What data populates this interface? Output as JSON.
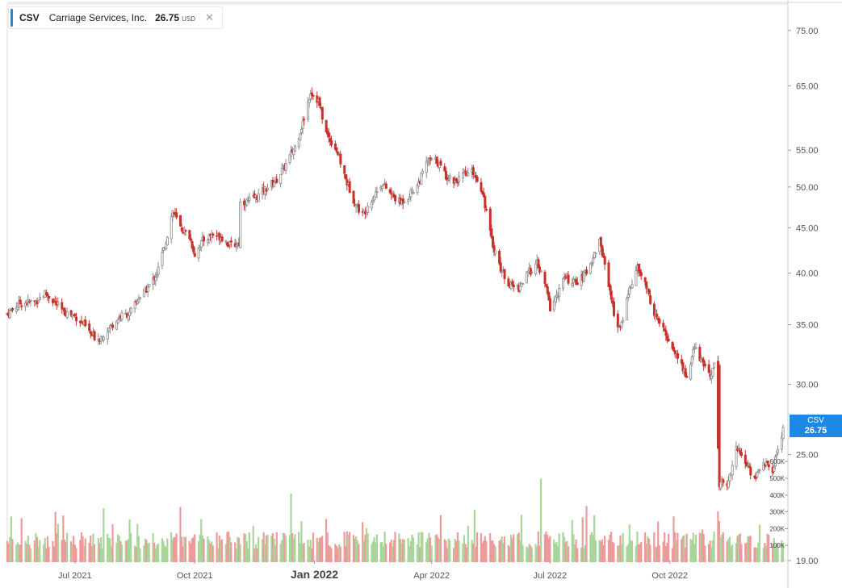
{
  "legend": {
    "symbol": "CSV",
    "name": "Carriage Services, Inc.",
    "price": "26.75",
    "unit": "USD",
    "close_glyph": "✕",
    "close_icon": "close-icon"
  },
  "price_tag": {
    "symbol": "CSV",
    "value": "26.75"
  },
  "colors": {
    "up": "#8a8a8a",
    "down": "#c9312a",
    "vol_up": "#a9d59b",
    "vol_down": "#ef9a9a",
    "tag": "#1e88e5",
    "grid": "#e8eaed"
  },
  "chart_data": {
    "type": "candlestick",
    "y_scale": "log",
    "ylim": [
      19.0,
      78.0
    ],
    "price_ticks": [
      "19.00",
      "25.00",
      "30.00",
      "35.00",
      "40.00",
      "45.00",
      "50.00",
      "55.00",
      "65.00",
      "75.00"
    ],
    "volume_ticks": [
      "100K",
      "200K",
      "300K",
      "400K",
      "500K",
      "600K"
    ],
    "x_ticks": [
      {
        "label": "Jul 2021",
        "date": "2021-07-01"
      },
      {
        "label": "Oct 2021",
        "date": "2021-10-01"
      },
      {
        "label": "Jan 2022",
        "date": "2022-01-01"
      },
      {
        "label": "Apr 2022",
        "date": "2022-04-01"
      },
      {
        "label": "Jul 2022",
        "date": "2022-07-01"
      },
      {
        "label": "Oct 2022",
        "date": "2022-10-01"
      }
    ],
    "x_range": [
      "2021-05-10",
      "2022-12-27"
    ],
    "close_series": [
      [
        "2021-05-10",
        36.0
      ],
      [
        "2021-05-20",
        37.0
      ],
      [
        "2021-06-01",
        37.2
      ],
      [
        "2021-06-08",
        38.0
      ],
      [
        "2021-06-14",
        37.3
      ],
      [
        "2021-06-22",
        36.2
      ],
      [
        "2021-07-01",
        35.8
      ],
      [
        "2021-07-08",
        35.0
      ],
      [
        "2021-07-14",
        34.0
      ],
      [
        "2021-07-20",
        33.8
      ],
      [
        "2021-07-28",
        34.8
      ],
      [
        "2021-08-05",
        35.8
      ],
      [
        "2021-08-12",
        36.0
      ],
      [
        "2021-08-19",
        37.5
      ],
      [
        "2021-08-26",
        38.5
      ],
      [
        "2021-09-02",
        40.0
      ],
      [
        "2021-09-09",
        43.5
      ],
      [
        "2021-09-14",
        47.0
      ],
      [
        "2021-09-20",
        45.0
      ],
      [
        "2021-09-27",
        44.0
      ],
      [
        "2021-10-01",
        42.0
      ],
      [
        "2021-10-07",
        43.5
      ],
      [
        "2021-10-14",
        44.2
      ],
      [
        "2021-10-21",
        44.0
      ],
      [
        "2021-10-28",
        43.0
      ],
      [
        "2021-11-04",
        43.2
      ],
      [
        "2021-11-05",
        48.0
      ],
      [
        "2021-11-11",
        48.2
      ],
      [
        "2021-11-18",
        48.8
      ],
      [
        "2021-11-26",
        50.0
      ],
      [
        "2021-12-03",
        51.0
      ],
      [
        "2021-12-10",
        53.0
      ],
      [
        "2021-12-17",
        55.5
      ],
      [
        "2021-12-23",
        59.0
      ],
      [
        "2021-12-29",
        64.0
      ],
      [
        "2022-01-04",
        62.5
      ],
      [
        "2022-01-10",
        57.5
      ],
      [
        "2022-01-18",
        55.0
      ],
      [
        "2022-01-25",
        51.0
      ],
      [
        "2022-02-01",
        48.0
      ],
      [
        "2022-02-07",
        46.5
      ],
      [
        "2022-02-14",
        48.5
      ],
      [
        "2022-02-22",
        50.5
      ],
      [
        "2022-03-01",
        49.0
      ],
      [
        "2022-03-08",
        48.0
      ],
      [
        "2022-03-15",
        49.0
      ],
      [
        "2022-03-22",
        50.5
      ],
      [
        "2022-03-29",
        53.5
      ],
      [
        "2022-04-05",
        53.5
      ],
      [
        "2022-04-12",
        51.5
      ],
      [
        "2022-04-19",
        50.8
      ],
      [
        "2022-04-26",
        51.5
      ],
      [
        "2022-05-03",
        52.0
      ],
      [
        "2022-05-10",
        49.5
      ],
      [
        "2022-05-17",
        43.5
      ],
      [
        "2022-05-24",
        40.5
      ],
      [
        "2022-05-31",
        38.8
      ],
      [
        "2022-06-07",
        38.5
      ],
      [
        "2022-06-14",
        40.0
      ],
      [
        "2022-06-21",
        41.0
      ],
      [
        "2022-06-28",
        38.5
      ],
      [
        "2022-07-01",
        36.5
      ],
      [
        "2022-07-07",
        38.0
      ],
      [
        "2022-07-12",
        39.5
      ],
      [
        "2022-07-19",
        39.0
      ],
      [
        "2022-07-26",
        39.5
      ],
      [
        "2022-08-01",
        41.0
      ],
      [
        "2022-08-08",
        43.5
      ],
      [
        "2022-08-15",
        39.0
      ],
      [
        "2022-08-19",
        36.0
      ],
      [
        "2022-08-24",
        34.5
      ],
      [
        "2022-08-30",
        38.0
      ],
      [
        "2022-09-06",
        40.5
      ],
      [
        "2022-09-12",
        39.0
      ],
      [
        "2022-09-19",
        36.0
      ],
      [
        "2022-09-26",
        34.5
      ],
      [
        "2022-10-03",
        33.0
      ],
      [
        "2022-10-10",
        31.5
      ],
      [
        "2022-10-14",
        30.5
      ],
      [
        "2022-10-20",
        33.0
      ],
      [
        "2022-10-27",
        31.5
      ],
      [
        "2022-11-01",
        30.8
      ],
      [
        "2022-11-04",
        31.5
      ],
      [
        "2022-11-08",
        23.5
      ],
      [
        "2022-11-14",
        23.0
      ],
      [
        "2022-11-21",
        25.5
      ],
      [
        "2022-11-28",
        24.5
      ],
      [
        "2022-12-05",
        23.5
      ],
      [
        "2022-12-12",
        24.5
      ],
      [
        "2022-12-19",
        24.0
      ],
      [
        "2022-12-27",
        26.75
      ]
    ]
  }
}
